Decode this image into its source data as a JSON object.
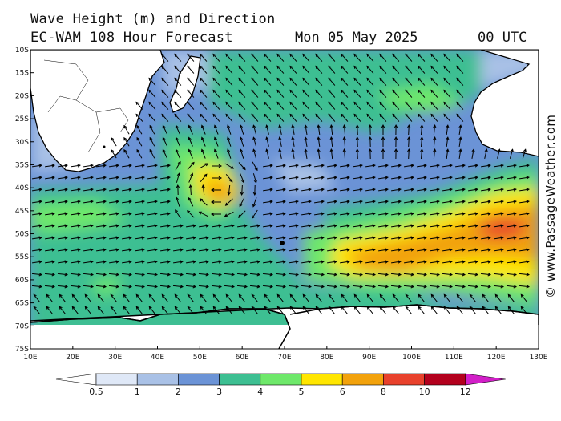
{
  "title": {
    "line1": "Wave Height (m) and Direction",
    "model": "EC-WAM 108 Hour Forecast",
    "date": "Mon 05 May 2025",
    "time": "00 UTC"
  },
  "credit": "© www.PassageWeather.com",
  "latitude_labels": [
    "10S",
    "15S",
    "20S",
    "25S",
    "30S",
    "35S",
    "40S",
    "45S",
    "50S",
    "55S",
    "60S",
    "65S",
    "70S",
    "75S"
  ],
  "longitude_labels": [
    "10E",
    "20E",
    "30E",
    "40E",
    "50E",
    "60E",
    "70E",
    "80E",
    "90E",
    "100E",
    "110E",
    "120E",
    "130E"
  ],
  "legend": {
    "ticks": [
      "0.5",
      "1",
      "2",
      "3",
      "4",
      "5",
      "6",
      "8",
      "10",
      "12"
    ],
    "colors": [
      "#ffffff",
      "#dfe8f7",
      "#a9c1e6",
      "#6b93d6",
      "#3dbf92",
      "#6ee86a",
      "#ffe600",
      "#f2a20c",
      "#e8412c",
      "#b3001d",
      "#d21fc8"
    ]
  },
  "colors": {
    "land": "#ffffff",
    "coast": "#000000",
    "arrow": "#000000"
  }
}
